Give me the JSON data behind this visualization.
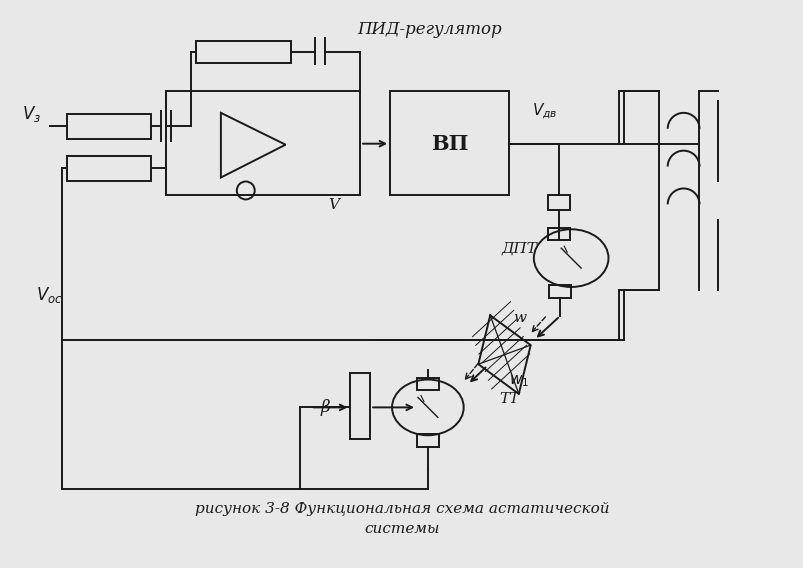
{
  "caption_line1": "рисунок 3-8 Функциональная схема астатической",
  "caption_line2": "системы",
  "line_color": "#1a1a1a",
  "label_Vz": "$V_з$",
  "label_V": "V",
  "label_Voc": "$V_{ос}$",
  "label_Vdv": "$V_{дв}$",
  "label_VP": "ВП",
  "label_PID": "ПИД-регулятор",
  "label_DPT": "ДПТ",
  "label_w": "w",
  "label_w1": "$w_1$",
  "label_TT": "ТТ",
  "label_beta": "β"
}
